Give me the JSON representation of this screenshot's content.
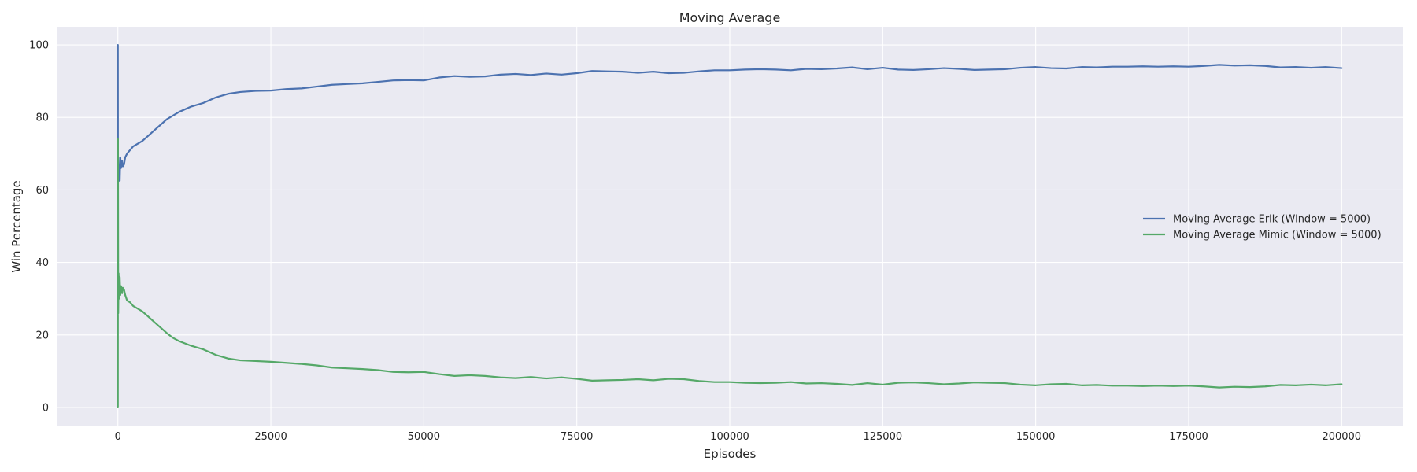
{
  "chart_data": {
    "type": "line",
    "title": "Moving Average",
    "xlabel": "Episodes",
    "ylabel": "Win Percentage",
    "xlim": [
      -10000,
      210000
    ],
    "ylim": [
      -5,
      105
    ],
    "xticks": [
      0,
      25000,
      50000,
      75000,
      100000,
      125000,
      150000,
      175000,
      200000
    ],
    "yticks": [
      0,
      20,
      40,
      60,
      80,
      100
    ],
    "grid": true,
    "legend_position": "right",
    "colors": {
      "plot_background": "#eaeaf2",
      "grid": "#ffffff",
      "erik": "#4c72b0",
      "mimic": "#55a868"
    },
    "series": [
      {
        "name": "Moving Average Erik (Window = 5000)",
        "color": "#4c72b0",
        "x": [
          0,
          20,
          60,
          120,
          200,
          300,
          400,
          500,
          600,
          700,
          800,
          1000,
          1200,
          1500,
          2000,
          2500,
          3000,
          4000,
          5000,
          6000,
          7000,
          8000,
          9000,
          10000,
          12000,
          14000,
          16000,
          18000,
          20000,
          22500,
          25000,
          27500,
          30000,
          32500,
          35000,
          37500,
          40000,
          42500,
          45000,
          47500,
          50000,
          52500,
          55000,
          57500,
          60000,
          62500,
          65000,
          67500,
          70000,
          72500,
          75000,
          77500,
          80000,
          82500,
          85000,
          87500,
          90000,
          92500,
          95000,
          97500,
          100000,
          102500,
          105000,
          107500,
          110000,
          112500,
          115000,
          117500,
          120000,
          122500,
          125000,
          127500,
          130000,
          132500,
          135000,
          137500,
          140000,
          142500,
          145000,
          147500,
          150000,
          152500,
          155000,
          157500,
          160000,
          162500,
          165000,
          167500,
          170000,
          172500,
          175000,
          177500,
          180000,
          182500,
          185000,
          187500,
          190000,
          192500,
          195000,
          197500,
          200000
        ],
        "y": [
          100,
          62,
          69,
          64,
          66,
          62.5,
          69,
          66,
          67,
          68,
          66.5,
          67,
          69,
          70,
          71,
          72,
          72.5,
          73.5,
          75,
          76.5,
          78,
          79.5,
          80.5,
          81.5,
          83,
          84,
          85.5,
          86.5,
          87,
          87.3,
          87.4,
          87.8,
          88,
          88.5,
          89,
          89.2,
          89.4,
          89.8,
          90.2,
          90.3,
          90.2,
          91,
          91.4,
          91.2,
          91.3,
          91.8,
          92,
          91.7,
          92.1,
          91.8,
          92.2,
          92.8,
          92.7,
          92.6,
          92.3,
          92.6,
          92.2,
          92.3,
          92.7,
          93,
          93,
          93.2,
          93.3,
          93.2,
          93,
          93.4,
          93.3,
          93.5,
          93.8,
          93.3,
          93.7,
          93.2,
          93.1,
          93.3,
          93.6,
          93.4,
          93.1,
          93.2,
          93.3,
          93.7,
          93.9,
          93.6,
          93.5,
          93.9,
          93.8,
          94,
          94,
          94.1,
          94,
          94.1,
          94,
          94.2,
          94.5,
          94.3,
          94.4,
          94.2,
          93.8,
          93.9,
          93.7,
          93.9,
          93.6
        ]
      },
      {
        "name": "Moving Average Mimic (Window = 5000)",
        "color": "#55a868",
        "x": [
          0,
          20,
          60,
          120,
          200,
          300,
          400,
          500,
          600,
          700,
          800,
          1000,
          1200,
          1500,
          2000,
          2500,
          3000,
          4000,
          5000,
          6000,
          7000,
          8000,
          9000,
          10000,
          12000,
          14000,
          16000,
          18000,
          20000,
          22500,
          25000,
          27500,
          30000,
          32500,
          35000,
          37500,
          40000,
          42500,
          45000,
          47500,
          50000,
          52500,
          55000,
          57500,
          60000,
          62500,
          65000,
          67500,
          70000,
          72500,
          75000,
          77500,
          80000,
          82500,
          85000,
          87500,
          90000,
          92500,
          95000,
          97500,
          100000,
          102500,
          105000,
          107500,
          110000,
          112500,
          115000,
          117500,
          120000,
          122500,
          125000,
          127500,
          130000,
          132500,
          135000,
          137500,
          140000,
          142500,
          145000,
          147500,
          150000,
          152500,
          155000,
          157500,
          160000,
          162500,
          165000,
          167500,
          170000,
          172500,
          175000,
          177500,
          180000,
          182500,
          185000,
          187500,
          190000,
          192500,
          195000,
          197500,
          200000
        ],
        "y": [
          0,
          74,
          26,
          37,
          30,
          36,
          31,
          33.5,
          33,
          31.5,
          33,
          32.5,
          31,
          29.5,
          29,
          28,
          27.5,
          26.5,
          25,
          23.5,
          22,
          20.5,
          19.2,
          18.3,
          17,
          16,
          14.5,
          13.5,
          13,
          12.8,
          12.6,
          12.3,
          12,
          11.6,
          11,
          10.8,
          10.6,
          10.3,
          9.8,
          9.7,
          9.8,
          9.2,
          8.7,
          8.9,
          8.7,
          8.3,
          8.1,
          8.4,
          8,
          8.3,
          7.9,
          7.4,
          7.5,
          7.6,
          7.8,
          7.5,
          7.9,
          7.8,
          7.3,
          7,
          7,
          6.8,
          6.7,
          6.8,
          7,
          6.6,
          6.7,
          6.5,
          6.2,
          6.7,
          6.3,
          6.8,
          6.9,
          6.7,
          6.4,
          6.6,
          6.9,
          6.8,
          6.7,
          6.3,
          6.1,
          6.4,
          6.5,
          6.1,
          6.2,
          6,
          6,
          5.9,
          6,
          5.9,
          6,
          5.8,
          5.5,
          5.7,
          5.6,
          5.8,
          6.2,
          6.1,
          6.3,
          6.1,
          6.4
        ]
      }
    ]
  }
}
